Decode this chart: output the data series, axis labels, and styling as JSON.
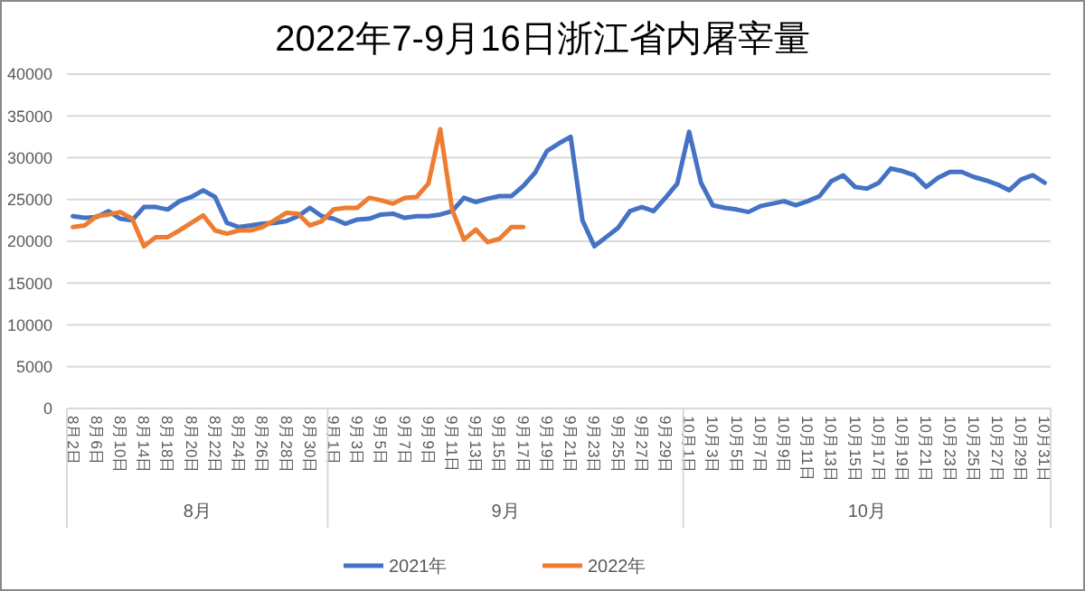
{
  "chart_data": {
    "type": "line",
    "title": "2022年7-9月16日浙江省内屠宰量",
    "categories": [
      "8月2日",
      null,
      "8月6日",
      null,
      "8月10日",
      null,
      "8月14日",
      null,
      "8月18日",
      null,
      "8月20日",
      null,
      "8月22日",
      null,
      "8月24日",
      null,
      "8月26日",
      null,
      "8月28日",
      null,
      "8月30日",
      null,
      "9月1日",
      null,
      "9月3日",
      null,
      "9月5日",
      null,
      "9月7日",
      null,
      "9月9日",
      null,
      "9月11日",
      null,
      "9月13日",
      null,
      "9月15日",
      null,
      "9月17日",
      null,
      "9月19日",
      null,
      "9月21日",
      null,
      "9月23日",
      null,
      "9月25日",
      null,
      "9月27日",
      null,
      "9月29日",
      null,
      "10月1日",
      null,
      "10月3日",
      null,
      "10月5日",
      null,
      "10月7日",
      null,
      "10月9日",
      null,
      "10月11日",
      null,
      "10月13日",
      null,
      "10月15日",
      null,
      "10月17日",
      null,
      "10月19日",
      null,
      "10月21日",
      null,
      "10月23日",
      null,
      "10月25日",
      null,
      "10月27日",
      null,
      "10月29日",
      null,
      "10月31日"
    ],
    "series": [
      {
        "name": "2021年",
        "color": "#4472c4",
        "values": [
          23000,
          22800,
          22900,
          23600,
          22700,
          22500,
          24100,
          24100,
          23800,
          24800,
          25300,
          26100,
          25300,
          22200,
          21700,
          21900,
          22100,
          22200,
          22400,
          23000,
          24000,
          23000,
          22700,
          22100,
          22600,
          22700,
          23200,
          23300,
          22800,
          23000,
          23000,
          23200,
          23600,
          25200,
          24700,
          25100,
          25400,
          25400,
          26600,
          28200,
          30800,
          31700,
          32500,
          22500,
          19400,
          20500,
          21600,
          23600,
          24100,
          23600,
          25200,
          26900,
          33100,
          27000,
          24300,
          24000,
          23800,
          23500,
          24200,
          24500,
          24800,
          24300,
          24800,
          25400,
          27200,
          27900,
          26500,
          26300,
          27000,
          28700,
          28400,
          27900,
          26500,
          27600,
          28300,
          28300,
          27700,
          27300,
          26800,
          26100,
          27400,
          27900,
          27000
        ]
      },
      {
        "name": "2022年",
        "color": "#ed7d31",
        "values": [
          21700,
          21900,
          23000,
          23200,
          23500,
          22700,
          19400,
          20500,
          20500,
          21300,
          22200,
          23100,
          21300,
          20900,
          21300,
          21300,
          21700,
          22500,
          23400,
          23300,
          21900,
          22400,
          23800,
          24000,
          24000,
          25200,
          24900,
          24500,
          25200,
          25300,
          26900,
          33400,
          23800,
          20200,
          21400,
          19900,
          20300,
          21700,
          21700,
          null,
          null,
          null,
          null,
          null,
          null,
          null,
          null,
          null,
          null,
          null,
          null,
          null,
          null,
          null,
          null,
          null,
          null,
          null,
          null,
          null,
          null,
          null,
          null,
          null,
          null,
          null,
          null,
          null,
          null,
          null,
          null,
          null,
          null,
          null,
          null,
          null,
          null,
          null,
          null,
          null,
          null,
          null,
          null
        ]
      }
    ],
    "ylim": [
      0,
      40000
    ],
    "yticks": [
      0,
      5000,
      10000,
      15000,
      20000,
      25000,
      30000,
      35000,
      40000
    ],
    "grid": "y",
    "legend": "bottom",
    "annotations": [
      "8月",
      "9月",
      "10月"
    ]
  }
}
